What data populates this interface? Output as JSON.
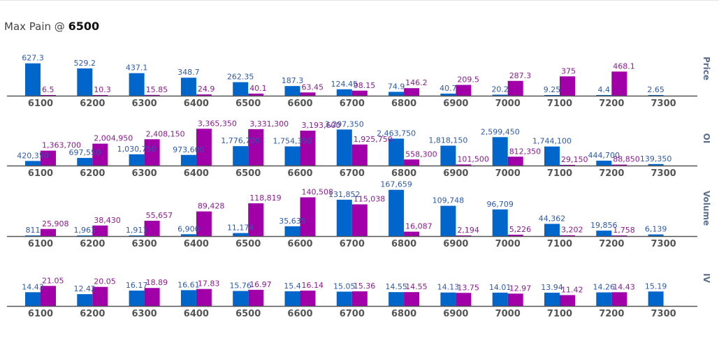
{
  "header": {
    "label": "Max Pain @",
    "value": "6500"
  },
  "colors": {
    "call": "#0066cc",
    "put": "#a100a8",
    "call_label": "#2e5aa8",
    "put_label": "#8a1c8e",
    "axis": "#555555",
    "panel_label": "#5a6f8f"
  },
  "chart_data": [
    {
      "type": "bar",
      "name": "Price",
      "categories": [
        "6100",
        "6200",
        "6300",
        "6400",
        "6500",
        "6600",
        "6700",
        "6800",
        "6900",
        "7000",
        "7100",
        "7200",
        "7300"
      ],
      "series": [
        {
          "values": [
            627.3,
            529.2,
            437.1,
            348.7,
            262.35,
            187.3,
            124.45,
            74.9,
            40.7,
            20.2,
            9.25,
            4.4,
            2.65
          ],
          "labels": [
            "627.3",
            "529.2",
            "437.1",
            "348.7",
            "262.35",
            "187.3",
            "124.45",
            "74.9",
            "40.7",
            "20.2",
            "9.25",
            "4.4",
            "2.65"
          ]
        },
        {
          "values": [
            6.5,
            10.3,
            15.85,
            24.9,
            40.1,
            63.45,
            98.15,
            146.2,
            209.5,
            287.3,
            375,
            468.1,
            null
          ],
          "labels": [
            "6.5",
            "10.3",
            "15.85",
            "24.9",
            "40.1",
            "63.45",
            "98.15",
            "146.2",
            "209.5",
            "287.3",
            "375",
            "468.1",
            ""
          ]
        }
      ],
      "ylim": [
        0,
        650
      ]
    },
    {
      "type": "bar",
      "name": "OI",
      "categories": [
        "6100",
        "6200",
        "6300",
        "6400",
        "6500",
        "6600",
        "6700",
        "6800",
        "6900",
        "7000",
        "7100",
        "7200",
        "7300"
      ],
      "series": [
        {
          "values": [
            420350,
            697550,
            1030750,
            973600,
            1776700,
            1754350,
            3297350,
            2463750,
            1818150,
            2599450,
            1744100,
            444700,
            139350
          ],
          "labels": [
            "420,350",
            "697,550",
            "1,030,750",
            "973,600",
            "1,776,700",
            "1,754,350",
            "3,297,350",
            "2,463,750",
            "1,818,150",
            "2,599,450",
            "1,744,100",
            "444,700",
            "139,350"
          ]
        },
        {
          "values": [
            1363700,
            2004950,
            2408150,
            3365350,
            3331300,
            3193600,
            1925750,
            558300,
            101500,
            812350,
            29150,
            88850,
            null
          ],
          "labels": [
            "1,363,700",
            "2,004,950",
            "2,408,150",
            "3,365,350",
            "3,331,300",
            "3,193,600",
            "1,925,750",
            "558,300",
            "101,500",
            "812,350",
            "29,150",
            "88,850",
            ""
          ]
        }
      ],
      "ylim": [
        0,
        3450000
      ]
    },
    {
      "type": "bar",
      "name": "Volume",
      "categories": [
        "6100",
        "6200",
        "6300",
        "6400",
        "6500",
        "6600",
        "6700",
        "6800",
        "6900",
        "7000",
        "7100",
        "7200",
        "7300"
      ],
      "series": [
        {
          "values": [
            811,
            1963,
            1911,
            6900,
            11174,
            35635,
            131852,
            167659,
            109748,
            96709,
            44362,
            19856,
            6139
          ],
          "labels": [
            "811",
            "1,963",
            "1,911",
            "6,900",
            "11,174",
            "35,635",
            "131,852",
            "167,659",
            "109,748",
            "96,709",
            "44,362",
            "19,856",
            "6,139"
          ]
        },
        {
          "values": [
            25908,
            38430,
            55657,
            89428,
            118819,
            140508,
            115038,
            16087,
            2194,
            5226,
            3202,
            1758,
            null
          ],
          "labels": [
            "25,908",
            "38,430",
            "55,657",
            "89,428",
            "118,819",
            "140,508",
            "115,038",
            "16,087",
            "2,194",
            "5,226",
            "3,202",
            "1,758",
            ""
          ]
        }
      ],
      "ylim": [
        0,
        172000
      ]
    },
    {
      "type": "bar",
      "name": "IV",
      "categories": [
        "6100",
        "6200",
        "6300",
        "6400",
        "6500",
        "6600",
        "6700",
        "6800",
        "6900",
        "7000",
        "7100",
        "7200",
        "7300"
      ],
      "series": [
        {
          "values": [
            14.43,
            12.42,
            16.17,
            16.61,
            15.76,
            15.4,
            15.05,
            14.55,
            14.13,
            14.01,
            13.94,
            14.26,
            15.19
          ],
          "labels": [
            "14.43",
            "12.42",
            "16.17",
            "16.61",
            "15.76",
            "15.4",
            "15.05",
            "14.55",
            "14.13",
            "14.01",
            "13.94",
            "14.26",
            "15.19"
          ]
        },
        {
          "values": [
            21.05,
            20.05,
            18.89,
            17.83,
            16.97,
            16.14,
            15.36,
            14.55,
            13.75,
            12.97,
            11.42,
            14.43,
            null
          ],
          "labels": [
            "21.05",
            "20.05",
            "18.89",
            "17.83",
            "16.97",
            "16.14",
            "15.36",
            "14.55",
            "13.75",
            "12.97",
            "11.42",
            "14.43",
            ""
          ]
        }
      ],
      "ylim": [
        0,
        22
      ]
    }
  ]
}
